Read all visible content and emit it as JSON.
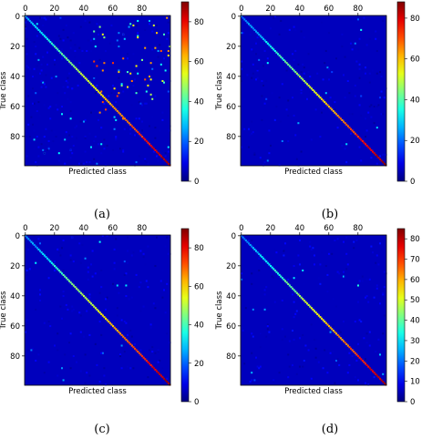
{
  "chart_data": [
    {
      "type": "heatmap",
      "caption": "(a)",
      "xlabel": "Predicted class",
      "ylabel": "True class",
      "x_ticks": [
        "0",
        "20",
        "40",
        "60",
        "80"
      ],
      "y_ticks": [
        "0",
        "20",
        "40",
        "60",
        "80"
      ],
      "n_classes": 100,
      "colorbar_ticks": [
        "0",
        "20",
        "40",
        "60",
        "80"
      ],
      "colorbar_range": [
        0,
        90
      ],
      "colormap": "jet",
      "diagonal_start": 25,
      "diagonal_peak": 88,
      "off_diagonal_noise": "heavy, concentrated in the upper-right region"
    },
    {
      "type": "heatmap",
      "caption": "(b)",
      "xlabel": "Predicted class",
      "ylabel": "True class",
      "x_ticks": [
        "0",
        "20",
        "40",
        "60",
        "80"
      ],
      "y_ticks": [
        "0",
        "20",
        "40",
        "60",
        "80"
      ],
      "n_classes": 100,
      "colorbar_ticks": [
        "0",
        "20",
        "40",
        "60",
        "80"
      ],
      "colorbar_range": [
        0,
        88
      ],
      "colormap": "jet",
      "diagonal_start": 20,
      "diagonal_peak": 86,
      "off_diagonal_noise": "light, scattered"
    },
    {
      "type": "heatmap",
      "caption": "(c)",
      "xlabel": "Predicted class",
      "ylabel": "True class",
      "x_ticks": [
        "0",
        "20",
        "40",
        "60",
        "80"
      ],
      "y_ticks": [
        "0",
        "20",
        "40",
        "60",
        "80"
      ],
      "n_classes": 100,
      "colorbar_ticks": [
        "0",
        "20",
        "40",
        "60",
        "80"
      ],
      "colorbar_range": [
        0,
        90
      ],
      "colormap": "jet",
      "diagonal_start": 22,
      "diagonal_peak": 88,
      "off_diagonal_noise": "light, scattered"
    },
    {
      "type": "heatmap",
      "caption": "(d)",
      "xlabel": "Predicted class",
      "ylabel": "True class",
      "x_ticks": [
        "0",
        "20",
        "40",
        "60",
        "80"
      ],
      "y_ticks": [
        "0",
        "20",
        "40",
        "60",
        "80"
      ],
      "n_classes": 100,
      "colorbar_ticks": [
        "0",
        "10",
        "20",
        "30",
        "40",
        "50",
        "60",
        "70",
        "80"
      ],
      "colorbar_range": [
        0,
        85
      ],
      "colormap": "jet",
      "diagonal_start": 20,
      "diagonal_peak": 82,
      "off_diagonal_noise": "light, scattered"
    }
  ]
}
